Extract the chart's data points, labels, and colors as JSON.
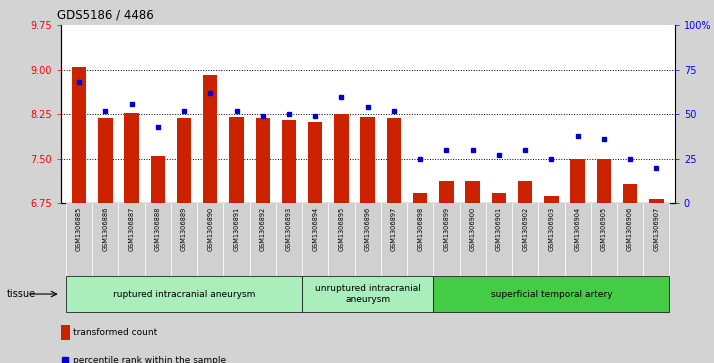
{
  "title": "GDS5186 / 4486",
  "samples": [
    "GSM1306885",
    "GSM1306886",
    "GSM1306887",
    "GSM1306888",
    "GSM1306889",
    "GSM1306890",
    "GSM1306891",
    "GSM1306892",
    "GSM1306893",
    "GSM1306894",
    "GSM1306895",
    "GSM1306896",
    "GSM1306897",
    "GSM1306898",
    "GSM1306899",
    "GSM1306900",
    "GSM1306901",
    "GSM1306902",
    "GSM1306903",
    "GSM1306904",
    "GSM1306905",
    "GSM1306906",
    "GSM1306907"
  ],
  "transformed_count": [
    9.05,
    8.18,
    8.28,
    7.55,
    8.18,
    8.92,
    8.2,
    8.18,
    8.15,
    8.12,
    8.25,
    8.2,
    8.18,
    6.93,
    7.12,
    7.12,
    6.93,
    7.12,
    6.88,
    7.5,
    7.5,
    7.08,
    6.82
  ],
  "percentile_rank": [
    68,
    52,
    56,
    43,
    52,
    62,
    52,
    49,
    50,
    49,
    60,
    54,
    52,
    25,
    30,
    30,
    27,
    30,
    25,
    38,
    36,
    25,
    20
  ],
  "group_labels": [
    "ruptured intracranial aneurysm",
    "unruptured intracranial\naneurysm",
    "superficial temporal artery"
  ],
  "group_ranges": [
    [
      0,
      8
    ],
    [
      9,
      13
    ],
    [
      14,
      22
    ]
  ],
  "group_colors": [
    "#AAEEBB",
    "#AAEEBB",
    "#44CC44"
  ],
  "ylim_left": [
    6.75,
    9.75
  ],
  "ylim_right": [
    0,
    100
  ],
  "yticks_left": [
    6.75,
    7.5,
    8.25,
    9.0,
    9.75
  ],
  "yticks_right": [
    0,
    25,
    50,
    75,
    100
  ],
  "ytick_labels_right": [
    "0",
    "25",
    "50",
    "75",
    "100%"
  ],
  "bar_color": "#CC2200",
  "dot_color": "#0000CC",
  "background_color": "#D3D3D3",
  "plot_bg": "#FFFFFF",
  "grid_lines": [
    7.5,
    8.25,
    9.0
  ],
  "tissue_label": "tissue"
}
